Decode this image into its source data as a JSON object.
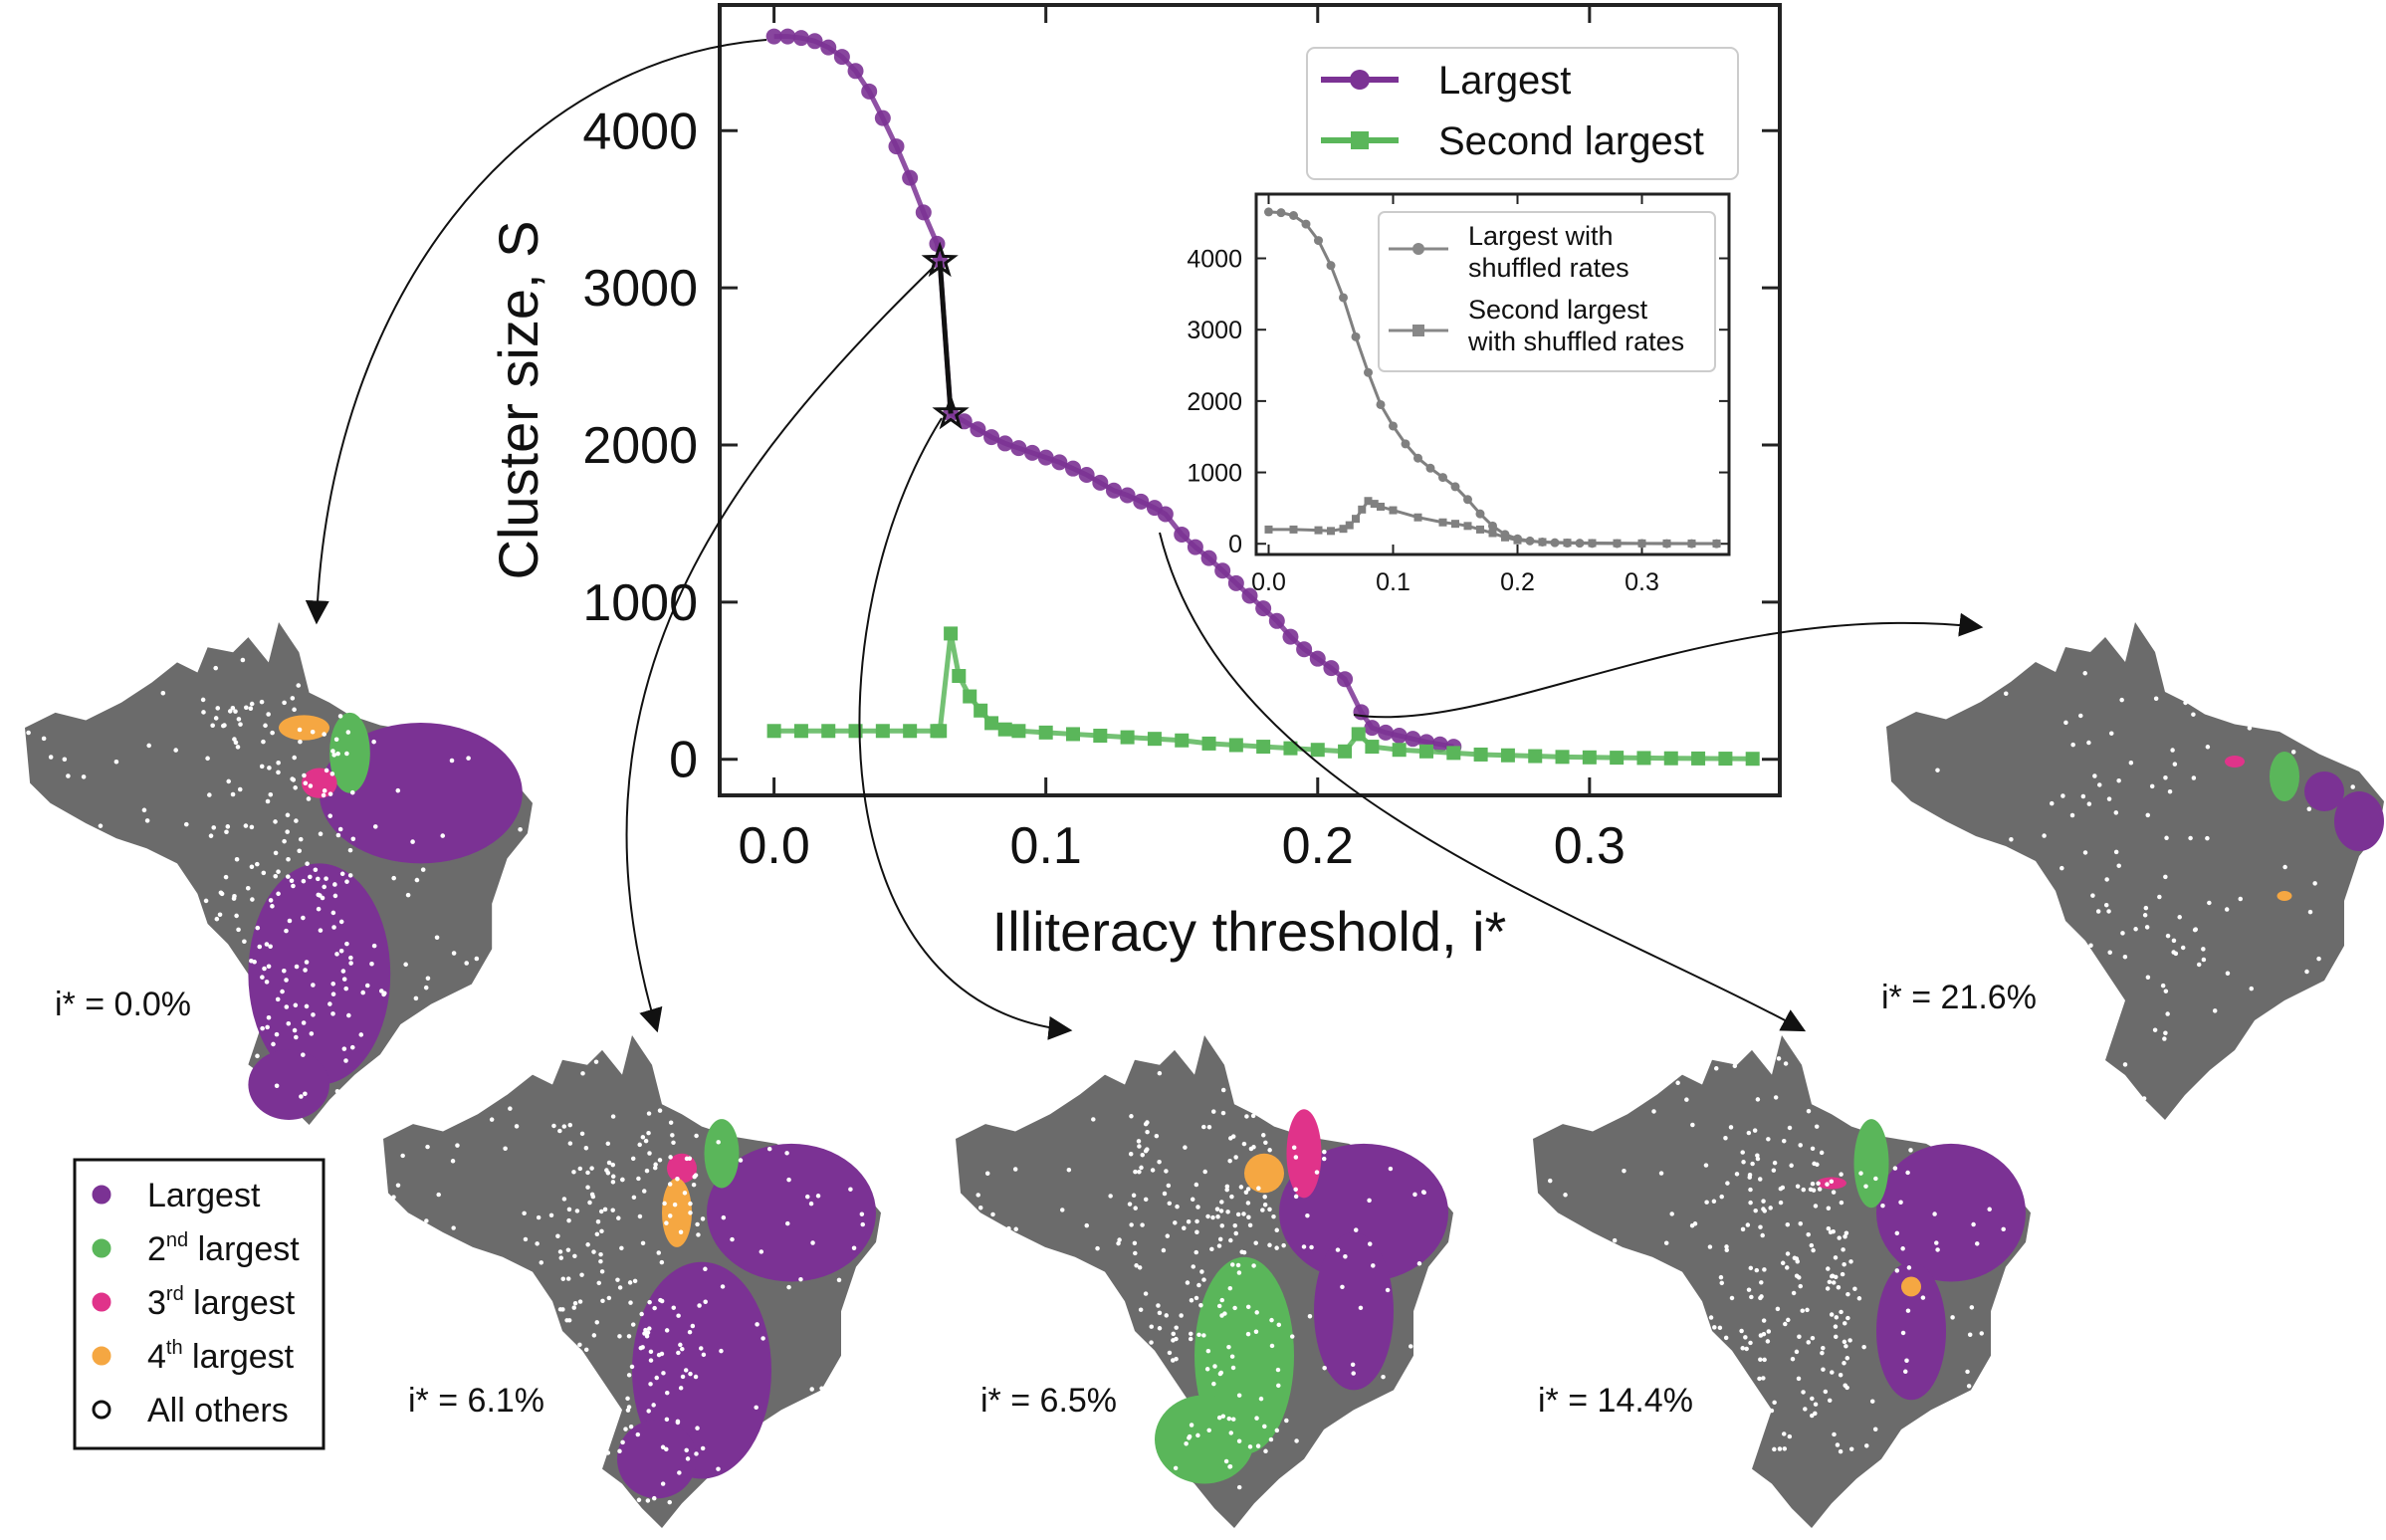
{
  "chart_data": {
    "type": "line",
    "xlabel": "Illiteracy threshold, i*",
    "ylabel": "Cluster size, S",
    "xlim": [
      -0.02,
      0.37
    ],
    "ylim": [
      -230,
      4800
    ],
    "xticks": [
      "0.0",
      "0.1",
      "0.2",
      "0.3"
    ],
    "yticks": [
      "0",
      "1000",
      "2000",
      "3000",
      "4000"
    ],
    "legend": "top-right",
    "series": [
      {
        "name": "Largest",
        "color": "#7b3294",
        "marker": "circle",
        "x": [
          0.0,
          0.005,
          0.01,
          0.015,
          0.02,
          0.025,
          0.03,
          0.035,
          0.04,
          0.045,
          0.05,
          0.055,
          0.06,
          0.061,
          0.065,
          0.07,
          0.075,
          0.08,
          0.085,
          0.09,
          0.095,
          0.1,
          0.105,
          0.11,
          0.115,
          0.12,
          0.125,
          0.13,
          0.135,
          0.14,
          0.144,
          0.15,
          0.155,
          0.16,
          0.165,
          0.17,
          0.175,
          0.18,
          0.185,
          0.19,
          0.195,
          0.2,
          0.205,
          0.21,
          0.216,
          0.22,
          0.225,
          0.23,
          0.235,
          0.24,
          0.245,
          0.25
        ],
        "values": [
          4600,
          4600,
          4590,
          4570,
          4530,
          4470,
          4380,
          4250,
          4080,
          3900,
          3700,
          3480,
          3280,
          3170,
          2200,
          2150,
          2100,
          2050,
          2010,
          1980,
          1950,
          1920,
          1890,
          1850,
          1810,
          1760,
          1710,
          1680,
          1640,
          1600,
          1560,
          1430,
          1350,
          1280,
          1200,
          1120,
          1040,
          960,
          880,
          780,
          700,
          640,
          580,
          510,
          300,
          200,
          170,
          150,
          130,
          110,
          95,
          80
        ]
      },
      {
        "name": "Second largest",
        "color": "#5ab65a",
        "marker": "square",
        "x": [
          0.0,
          0.01,
          0.02,
          0.03,
          0.04,
          0.05,
          0.06,
          0.061,
          0.065,
          0.068,
          0.072,
          0.076,
          0.08,
          0.085,
          0.09,
          0.1,
          0.11,
          0.12,
          0.13,
          0.14,
          0.15,
          0.16,
          0.17,
          0.18,
          0.19,
          0.2,
          0.21,
          0.215,
          0.22,
          0.23,
          0.24,
          0.25,
          0.26,
          0.27,
          0.28,
          0.29,
          0.3,
          0.31,
          0.32,
          0.33,
          0.34,
          0.35,
          0.36
        ],
        "values": [
          180,
          180,
          180,
          180,
          180,
          180,
          180,
          180,
          800,
          530,
          400,
          310,
          230,
          190,
          180,
          170,
          160,
          150,
          140,
          130,
          120,
          100,
          90,
          80,
          70,
          60,
          50,
          160,
          80,
          60,
          50,
          40,
          30,
          25,
          20,
          15,
          12,
          10,
          8,
          6,
          5,
          4,
          3
        ]
      }
    ],
    "inset": {
      "type": "line",
      "xlim": [
        -0.01,
        0.37
      ],
      "ylim": [
        -150,
        4900
      ],
      "xticks": [
        "0.0",
        "0.1",
        "0.2",
        "0.3"
      ],
      "yticks": [
        "0",
        "1000",
        "2000",
        "3000",
        "4000"
      ],
      "legend": "top-right",
      "series": [
        {
          "name": "Largest with shuffled rates",
          "color": "#808080",
          "marker": "circle",
          "x": [
            0.0,
            0.01,
            0.02,
            0.03,
            0.04,
            0.05,
            0.06,
            0.07,
            0.08,
            0.09,
            0.1,
            0.11,
            0.12,
            0.13,
            0.14,
            0.15,
            0.16,
            0.17,
            0.18,
            0.19,
            0.2,
            0.21,
            0.22,
            0.23,
            0.24,
            0.25,
            0.26,
            0.28,
            0.3,
            0.32,
            0.34,
            0.36
          ],
          "values": [
            4650,
            4640,
            4600,
            4480,
            4250,
            3900,
            3450,
            2900,
            2400,
            1950,
            1650,
            1400,
            1200,
            1060,
            930,
            800,
            620,
            420,
            250,
            130,
            70,
            40,
            25,
            15,
            10,
            8,
            6,
            4,
            3,
            2,
            2,
            1
          ]
        },
        {
          "name": "Second largest with shuffled rates",
          "color": "#808080",
          "marker": "square",
          "x": [
            0.0,
            0.02,
            0.04,
            0.05,
            0.06,
            0.065,
            0.07,
            0.075,
            0.08,
            0.085,
            0.09,
            0.1,
            0.12,
            0.14,
            0.15,
            0.16,
            0.17,
            0.18,
            0.19,
            0.2,
            0.22,
            0.24,
            0.26,
            0.28,
            0.3,
            0.32,
            0.34,
            0.36
          ],
          "values": [
            200,
            200,
            190,
            180,
            210,
            260,
            350,
            480,
            600,
            560,
            520,
            470,
            370,
            300,
            280,
            250,
            200,
            150,
            90,
            50,
            25,
            15,
            10,
            8,
            6,
            5,
            4,
            3
          ]
        }
      ]
    },
    "star_markers": [
      {
        "x": 0.061,
        "y": 3170
      },
      {
        "x": 0.065,
        "y": 2200
      }
    ]
  },
  "inset_legend": {
    "largest": [
      "Largest with",
      "shuffled rates"
    ],
    "second": [
      "Second largest",
      "with shuffled rates"
    ]
  },
  "maps": [
    {
      "id": "map-0",
      "label": "i* = 0.0%",
      "linked_x": 0.0
    },
    {
      "id": "map-1",
      "label": "i* = 6.1%",
      "linked_x": 0.061
    },
    {
      "id": "map-2",
      "label": "i* = 6.5%",
      "linked_x": 0.065
    },
    {
      "id": "map-3",
      "label": "i* = 14.4%",
      "linked_x": 0.144
    },
    {
      "id": "map-4",
      "label": "i* = 21.6%",
      "linked_x": 0.216
    }
  ],
  "cluster_legend": [
    {
      "label": "Largest",
      "sup": "",
      "tail": "",
      "color": "#7b3294"
    },
    {
      "label": "2",
      "sup": "nd",
      "tail": " largest",
      "color": "#5ab65a"
    },
    {
      "label": "3",
      "sup": "rd",
      "tail": " largest",
      "color": "#e0338a"
    },
    {
      "label": "4",
      "sup": "th",
      "tail": " largest",
      "color": "#f5a742"
    },
    {
      "label": "All others",
      "sup": "",
      "tail": "",
      "color": "#ffffff"
    }
  ],
  "colors": {
    "region_base": "#6b6b6b",
    "others": "#ffffff"
  }
}
